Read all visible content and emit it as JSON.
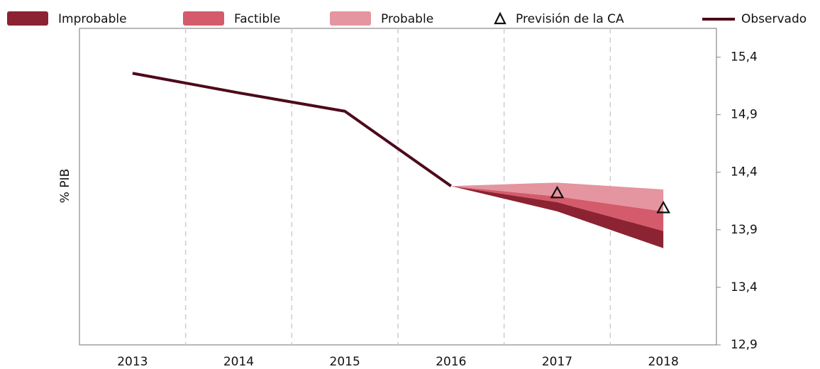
{
  "chart_data": {
    "type": "fan",
    "y_label": "% PIB",
    "categories": [
      "2013",
      "2014",
      "2015",
      "2016",
      "2017",
      "2018"
    ],
    "ylim": [
      12.9,
      15.65
    ],
    "yticks": [
      {
        "value": 12.9,
        "label": "12,9"
      },
      {
        "value": 13.4,
        "label": "13,4"
      },
      {
        "value": 13.9,
        "label": "13,9"
      },
      {
        "value": 14.4,
        "label": "14,4"
      },
      {
        "value": 14.9,
        "label": "14,9"
      },
      {
        "value": 15.4,
        "label": "15,4"
      }
    ],
    "grid": true,
    "bands": [
      {
        "name": "Improbable",
        "color": "#8b2332",
        "lower": [
          null,
          null,
          null,
          14.28,
          14.06,
          13.74
        ],
        "upper": [
          null,
          null,
          null,
          14.28,
          14.14,
          13.89
        ]
      },
      {
        "name": "Factible",
        "color": "#d45b6b",
        "lower": [
          null,
          null,
          null,
          14.28,
          14.14,
          13.89
        ],
        "upper": [
          null,
          null,
          null,
          14.28,
          14.19,
          14.06
        ]
      },
      {
        "name": "Probable",
        "color": "#e4959f",
        "lower": [
          null,
          null,
          null,
          14.28,
          14.19,
          14.06
        ],
        "upper": [
          null,
          null,
          null,
          14.28,
          14.31,
          14.25
        ]
      }
    ],
    "forecast": {
      "name": "Previsión de la CA",
      "values": [
        null,
        null,
        null,
        null,
        14.22,
        14.09
      ]
    },
    "observed": {
      "name": "Observado",
      "color": "#4d0a1a",
      "values": [
        15.26,
        15.09,
        14.93,
        14.28,
        null,
        null
      ]
    }
  }
}
